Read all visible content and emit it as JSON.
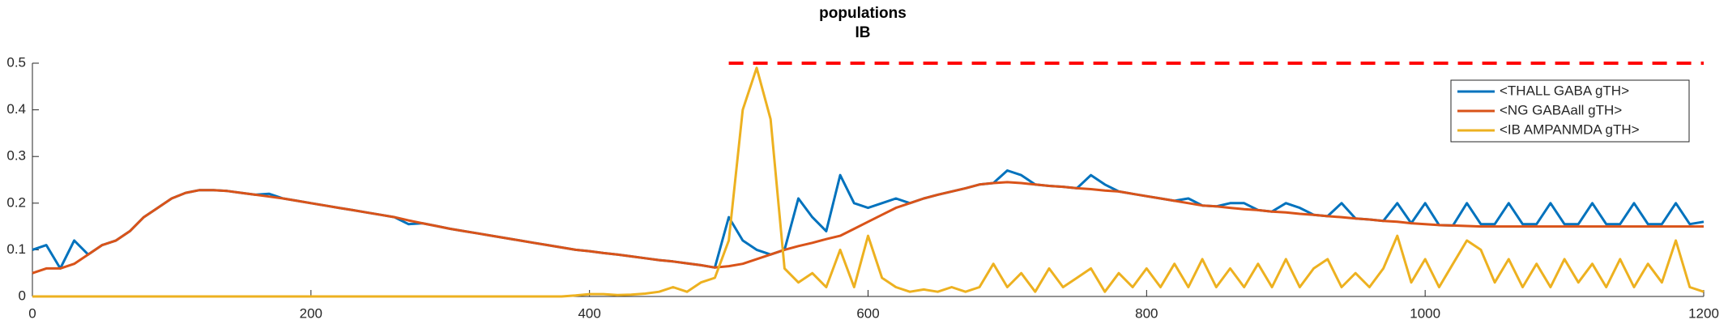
{
  "chart_data": {
    "type": "line",
    "title": [
      "populations",
      "IB"
    ],
    "x": [
      0,
      10,
      20,
      30,
      40,
      50,
      60,
      70,
      80,
      90,
      100,
      110,
      120,
      130,
      140,
      150,
      160,
      170,
      180,
      190,
      200,
      210,
      220,
      230,
      240,
      250,
      260,
      270,
      280,
      290,
      300,
      310,
      320,
      330,
      340,
      350,
      360,
      370,
      380,
      390,
      400,
      410,
      420,
      430,
      440,
      450,
      460,
      470,
      480,
      490,
      500,
      510,
      520,
      530,
      540,
      550,
      560,
      570,
      580,
      590,
      600,
      610,
      620,
      630,
      640,
      650,
      660,
      670,
      680,
      690,
      700,
      710,
      720,
      730,
      740,
      750,
      760,
      770,
      780,
      790,
      800,
      810,
      820,
      830,
      840,
      850,
      860,
      870,
      880,
      890,
      900,
      910,
      920,
      930,
      940,
      950,
      960,
      970,
      980,
      990,
      1000,
      1010,
      1020,
      1030,
      1040,
      1050,
      1060,
      1070,
      1080,
      1090,
      1100,
      1110,
      1120,
      1130,
      1140,
      1150,
      1160,
      1170,
      1180,
      1190,
      1200
    ],
    "series": [
      {
        "name": "<THALL GABA gTH>",
        "color": "#0072bd",
        "values": [
          0.1,
          0.11,
          0.06,
          0.12,
          0.09,
          0.11,
          0.12,
          0.14,
          0.17,
          0.19,
          0.21,
          0.222,
          0.228,
          0.228,
          0.226,
          0.222,
          0.218,
          0.22,
          0.21,
          0.205,
          0.2,
          0.195,
          0.19,
          0.185,
          0.18,
          0.175,
          0.17,
          0.155,
          0.157,
          0.151,
          0.145,
          0.14,
          0.135,
          0.13,
          0.125,
          0.12,
          0.115,
          0.11,
          0.105,
          0.1,
          0.097,
          0.093,
          0.09,
          0.086,
          0.082,
          0.078,
          0.075,
          0.071,
          0.067,
          0.062,
          0.17,
          0.12,
          0.1,
          0.09,
          0.1,
          0.21,
          0.17,
          0.14,
          0.26,
          0.2,
          0.19,
          0.2,
          0.21,
          0.2,
          0.21,
          0.218,
          0.225,
          0.232,
          0.24,
          0.243,
          0.27,
          0.26,
          0.24,
          0.237,
          0.235,
          0.232,
          0.26,
          0.24,
          0.225,
          0.22,
          0.215,
          0.21,
          0.205,
          0.21,
          0.195,
          0.193,
          0.2,
          0.2,
          0.185,
          0.182,
          0.2,
          0.19,
          0.175,
          0.172,
          0.2,
          0.167,
          0.165,
          0.162,
          0.2,
          0.157,
          0.2,
          0.153,
          0.152,
          0.2,
          0.155,
          0.155,
          0.2,
          0.155,
          0.155,
          0.2,
          0.155,
          0.155,
          0.2,
          0.155,
          0.155,
          0.2,
          0.155,
          0.155,
          0.2,
          0.155,
          0.16
        ]
      },
      {
        "name": "<NG GABAall gTH>",
        "color": "#d95319",
        "values": [
          0.05,
          0.06,
          0.06,
          0.07,
          0.09,
          0.11,
          0.12,
          0.14,
          0.17,
          0.19,
          0.21,
          0.222,
          0.228,
          0.228,
          0.226,
          0.222,
          0.218,
          0.214,
          0.21,
          0.205,
          0.2,
          0.195,
          0.19,
          0.185,
          0.18,
          0.175,
          0.17,
          0.163,
          0.157,
          0.151,
          0.145,
          0.14,
          0.135,
          0.13,
          0.125,
          0.12,
          0.115,
          0.11,
          0.105,
          0.1,
          0.097,
          0.093,
          0.09,
          0.086,
          0.082,
          0.078,
          0.075,
          0.071,
          0.067,
          0.062,
          0.065,
          0.07,
          0.08,
          0.09,
          0.1,
          0.108,
          0.115,
          0.123,
          0.13,
          0.145,
          0.16,
          0.175,
          0.19,
          0.2,
          0.21,
          0.218,
          0.225,
          0.232,
          0.24,
          0.243,
          0.245,
          0.243,
          0.24,
          0.237,
          0.235,
          0.232,
          0.23,
          0.227,
          0.225,
          0.22,
          0.215,
          0.21,
          0.205,
          0.2,
          0.195,
          0.193,
          0.19,
          0.187,
          0.185,
          0.182,
          0.18,
          0.177,
          0.175,
          0.172,
          0.17,
          0.167,
          0.165,
          0.162,
          0.16,
          0.157,
          0.155,
          0.153,
          0.152,
          0.151,
          0.15,
          0.15,
          0.15,
          0.15,
          0.15,
          0.15,
          0.15,
          0.15,
          0.15,
          0.15,
          0.15,
          0.15,
          0.15,
          0.15,
          0.15,
          0.15,
          0.15
        ]
      },
      {
        "name": "<IB AMPANMDA gTH>",
        "color": "#edb120",
        "values": [
          0,
          0,
          0,
          0,
          0,
          0,
          0,
          0,
          0,
          0,
          0,
          0,
          0,
          0,
          0,
          0,
          0,
          0,
          0,
          0,
          0,
          0,
          0,
          0,
          0,
          0,
          0,
          0,
          0,
          0,
          0,
          0,
          0,
          0,
          0,
          0,
          0,
          0,
          0,
          0.002,
          0.005,
          0.005,
          0.003,
          0.004,
          0.006,
          0.01,
          0.02,
          0.01,
          0.03,
          0.04,
          0.12,
          0.4,
          0.49,
          0.38,
          0.06,
          0.03,
          0.05,
          0.02,
          0.1,
          0.02,
          0.13,
          0.04,
          0.02,
          0.01,
          0.015,
          0.01,
          0.02,
          0.01,
          0.02,
          0.07,
          0.02,
          0.05,
          0.01,
          0.06,
          0.02,
          0.04,
          0.06,
          0.01,
          0.05,
          0.02,
          0.06,
          0.02,
          0.07,
          0.02,
          0.08,
          0.02,
          0.06,
          0.02,
          0.07,
          0.02,
          0.08,
          0.02,
          0.06,
          0.08,
          0.02,
          0.05,
          0.02,
          0.06,
          0.13,
          0.03,
          0.08,
          0.02,
          0.07,
          0.12,
          0.1,
          0.03,
          0.08,
          0.02,
          0.07,
          0.02,
          0.08,
          0.03,
          0.07,
          0.02,
          0.08,
          0.02,
          0.07,
          0.03,
          0.12,
          0.02,
          0.01
        ]
      }
    ],
    "reference_line": {
      "value": 0.5,
      "x": [
        500,
        1200
      ],
      "color": "#ff0000"
    },
    "xlim": [
      0,
      1200
    ],
    "xticks": [
      0,
      200,
      400,
      600,
      800,
      1000,
      1200
    ],
    "ylim": [
      0,
      0.5
    ],
    "yticks": [
      0,
      0.1,
      0.2,
      0.3,
      0.4,
      0.5
    ],
    "legend": "top-right"
  }
}
